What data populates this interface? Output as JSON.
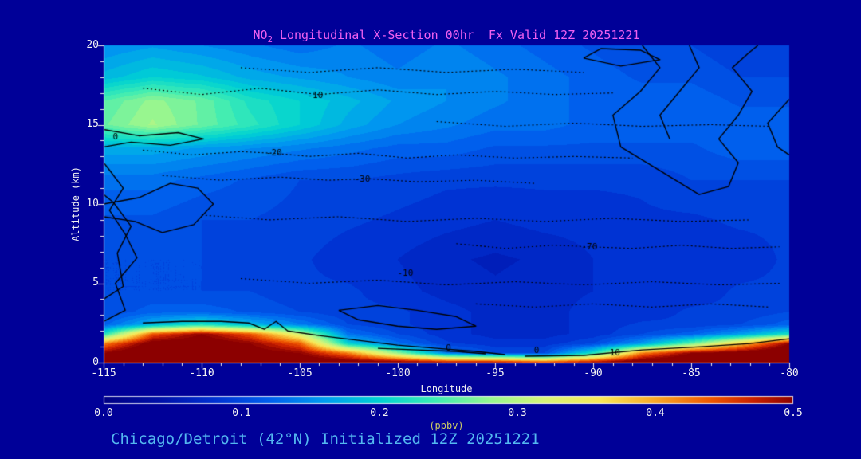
{
  "window": {
    "background": "#000098"
  },
  "title": {
    "prefix": "NO",
    "subscript": "2",
    "rest": " Longitudinal X-Section 00hr  Fx Valid 12Z 20251221",
    "color": "#f060f0"
  },
  "axes": {
    "y_label": "Altitude (km)",
    "y_ticks": [
      "20",
      "15",
      "10",
      "5",
      "0"
    ],
    "x_label": "Longitude",
    "x_ticks": [
      "-115",
      "-110",
      "-105",
      "-100",
      "-95",
      "-90",
      "-85",
      "-80"
    ],
    "text_color": "#f2f2f2"
  },
  "colorbar": {
    "tick_labels": [
      "0.0",
      "0.1",
      "0.2",
      "0.3",
      "0.4",
      "0.5"
    ],
    "units_label": "(ppbv)",
    "units_color": "#cccc66"
  },
  "caption": {
    "text": "Chicago/Detroit (42°N) Initialized 12Z 20251221",
    "color": "#54b8f0"
  },
  "chart_data": {
    "type": "heatmap",
    "title": "NO2 Longitudinal X-Section 00hr  Fx Valid 12Z 20251221",
    "xlabel": "Longitude",
    "ylabel": "Altitude (km)",
    "xlim": [
      -115,
      -80
    ],
    "ylim": [
      0,
      20
    ],
    "colorbar": {
      "min": 0,
      "max": 0.5,
      "label": "(ppbv)",
      "ticks": [
        0.0,
        0.1,
        0.2,
        0.3,
        0.4,
        0.5
      ]
    },
    "level_step": 0.0125,
    "x": [
      -115,
      -112.5,
      -110,
      -107.5,
      -105,
      -102.5,
      -100,
      -97.5,
      -95,
      -92.5,
      -90,
      -87.5,
      -85,
      -82.5,
      -80
    ],
    "y": [
      0,
      0.6,
      1.2,
      1.8,
      2.4,
      3.2,
      4.5,
      6.5,
      9,
      11.5,
      13.5,
      15,
      16.5,
      18,
      20
    ],
    "values": [
      [
        0.52,
        0.56,
        0.56,
        0.55,
        0.54,
        0.53,
        0.52,
        0.5,
        0.5,
        0.46,
        0.5,
        0.54,
        0.55,
        0.56,
        0.56
      ],
      [
        0.5,
        0.55,
        0.55,
        0.52,
        0.5,
        0.42,
        0.28,
        0.14,
        0.1,
        0.1,
        0.22,
        0.42,
        0.5,
        0.52,
        0.55
      ],
      [
        0.42,
        0.52,
        0.53,
        0.5,
        0.44,
        0.2,
        0.13,
        0.09,
        0.08,
        0.08,
        0.1,
        0.16,
        0.26,
        0.38,
        0.5
      ],
      [
        0.22,
        0.44,
        0.5,
        0.44,
        0.32,
        0.13,
        0.1,
        0.08,
        0.07,
        0.07,
        0.08,
        0.1,
        0.12,
        0.16,
        0.22
      ],
      [
        0.12,
        0.18,
        0.22,
        0.18,
        0.14,
        0.1,
        0.09,
        0.08,
        0.07,
        0.07,
        0.08,
        0.09,
        0.09,
        0.1,
        0.12
      ],
      [
        0.1,
        0.12,
        0.12,
        0.11,
        0.1,
        0.09,
        0.09,
        0.08,
        0.07,
        0.07,
        0.08,
        0.08,
        0.09,
        0.09,
        0.1
      ],
      [
        0.1,
        0.1,
        0.1,
        0.1,
        0.09,
        0.09,
        0.08,
        0.07,
        0.065,
        0.07,
        0.075,
        0.08,
        0.08,
        0.09,
        0.09
      ],
      [
        0.1,
        0.1,
        0.1,
        0.09,
        0.09,
        0.08,
        0.075,
        0.065,
        0.06,
        0.065,
        0.075,
        0.08,
        0.08,
        0.08,
        0.09
      ],
      [
        0.11,
        0.11,
        0.1,
        0.1,
        0.095,
        0.09,
        0.085,
        0.08,
        0.075,
        0.08,
        0.08,
        0.085,
        0.085,
        0.09,
        0.09
      ],
      [
        0.13,
        0.13,
        0.12,
        0.11,
        0.1,
        0.1,
        0.095,
        0.09,
        0.09,
        0.09,
        0.09,
        0.09,
        0.1,
        0.1,
        0.1
      ],
      [
        0.17,
        0.17,
        0.16,
        0.15,
        0.14,
        0.13,
        0.12,
        0.12,
        0.11,
        0.11,
        0.11,
        0.11,
        0.11,
        0.12,
        0.12
      ],
      [
        0.26,
        0.29,
        0.26,
        0.23,
        0.2,
        0.17,
        0.15,
        0.14,
        0.13,
        0.13,
        0.12,
        0.12,
        0.12,
        0.12,
        0.12
      ],
      [
        0.25,
        0.28,
        0.26,
        0.22,
        0.2,
        0.18,
        0.16,
        0.15,
        0.14,
        0.13,
        0.12,
        0.12,
        0.12,
        0.11,
        0.11
      ],
      [
        0.18,
        0.2,
        0.19,
        0.17,
        0.16,
        0.15,
        0.14,
        0.15,
        0.14,
        0.13,
        0.12,
        0.11,
        0.11,
        0.1,
        0.1
      ],
      [
        0.15,
        0.16,
        0.15,
        0.14,
        0.13,
        0.14,
        0.13,
        0.14,
        0.13,
        0.12,
        0.11,
        0.1,
        0.1,
        0.09,
        0.09
      ]
    ],
    "colormap": [
      [
        0.0,
        "#000084"
      ],
      [
        0.04,
        "#0010a8"
      ],
      [
        0.08,
        "#0032d2"
      ],
      [
        0.12,
        "#0060ee"
      ],
      [
        0.16,
        "#009cf0"
      ],
      [
        0.2,
        "#00d2d2"
      ],
      [
        0.24,
        "#3cecb4"
      ],
      [
        0.28,
        "#96f690"
      ],
      [
        0.32,
        "#d8f478"
      ],
      [
        0.36,
        "#f8e858"
      ],
      [
        0.4,
        "#f8a828"
      ],
      [
        0.44,
        "#f05800"
      ],
      [
        0.47,
        "#cc2200"
      ],
      [
        0.5,
        "#8c0000"
      ]
    ],
    "contours": {
      "solid": [
        [
          [
            -115,
            2.6
          ],
          [
            -113.9,
            3.3
          ],
          [
            -114.4,
            5.0
          ],
          [
            -113.3,
            6.6
          ],
          [
            -113.9,
            8.1
          ],
          [
            -114.7,
            9.6
          ],
          [
            -114.0,
            11.0
          ],
          [
            -114.8,
            12.3
          ],
          [
            -115,
            12.6
          ]
        ],
        [
          [
            -115,
            4.0
          ],
          [
            -114.0,
            4.8
          ],
          [
            -114.3,
            6.9
          ],
          [
            -113.6,
            8.6
          ],
          [
            -114.5,
            10.1
          ],
          [
            -115,
            10.6
          ]
        ],
        [
          [
            -115,
            14.7
          ],
          [
            -113.2,
            14.3
          ],
          [
            -111.2,
            14.5
          ],
          [
            -109.9,
            14.1
          ],
          [
            -111.6,
            13.7
          ],
          [
            -113.6,
            13.9
          ],
          [
            -115,
            13.6
          ]
        ],
        [
          [
            -115,
            10.0
          ],
          [
            -113.2,
            10.4
          ],
          [
            -111.6,
            11.3
          ],
          [
            -110.2,
            11.0
          ],
          [
            -109.4,
            10.0
          ],
          [
            -110.4,
            8.7
          ],
          [
            -112.0,
            8.2
          ],
          [
            -113.4,
            8.9
          ],
          [
            -115,
            9.2
          ]
        ],
        [
          [
            -113.0,
            2.5
          ],
          [
            -111.0,
            2.6
          ],
          [
            -109.0,
            2.6
          ],
          [
            -107.6,
            2.5
          ],
          [
            -106.8,
            2.1
          ],
          [
            -106.2,
            2.6
          ],
          [
            -105.6,
            2.0
          ],
          [
            -104.0,
            1.7
          ],
          [
            -102.0,
            1.4
          ],
          [
            -100.0,
            1.1
          ],
          [
            -98.0,
            0.9
          ],
          [
            -96.0,
            0.7
          ],
          [
            -94.5,
            0.5
          ]
        ],
        [
          [
            -103.0,
            3.3
          ],
          [
            -101.0,
            3.6
          ],
          [
            -99.0,
            3.3
          ],
          [
            -97.0,
            2.9
          ],
          [
            -96.0,
            2.3
          ],
          [
            -98.0,
            2.1
          ],
          [
            -100.0,
            2.3
          ],
          [
            -102.0,
            2.7
          ],
          [
            -103.0,
            3.3
          ]
        ],
        [
          [
            -93.5,
            0.4
          ],
          [
            -90.5,
            0.45
          ],
          [
            -87.5,
            0.8
          ],
          [
            -84.5,
            1.0
          ],
          [
            -82.0,
            1.2
          ],
          [
            -80,
            1.5
          ]
        ],
        [
          [
            -87.5,
            20
          ],
          [
            -86.6,
            18.6
          ],
          [
            -87.6,
            17.1
          ],
          [
            -89.0,
            15.6
          ],
          [
            -88.6,
            13.6
          ],
          [
            -86.6,
            12.1
          ],
          [
            -84.6,
            10.6
          ],
          [
            -83.1,
            11.1
          ],
          [
            -82.6,
            12.6
          ],
          [
            -83.6,
            14.1
          ],
          [
            -82.6,
            15.6
          ],
          [
            -81.9,
            17.1
          ],
          [
            -82.9,
            18.6
          ],
          [
            -82.1,
            19.5
          ],
          [
            -81.6,
            20
          ]
        ],
        [
          [
            -90.5,
            19.2
          ],
          [
            -88.6,
            18.7
          ],
          [
            -86.6,
            19.1
          ],
          [
            -87.6,
            19.7
          ],
          [
            -89.6,
            19.8
          ],
          [
            -90.5,
            19.2
          ]
        ],
        [
          [
            -85.1,
            20
          ],
          [
            -84.6,
            18.6
          ],
          [
            -85.6,
            17.1
          ],
          [
            -86.6,
            15.6
          ],
          [
            -86.1,
            14.1
          ]
        ],
        [
          [
            -80,
            16.6
          ],
          [
            -81.1,
            15.1
          ],
          [
            -80.6,
            13.6
          ],
          [
            -80,
            13.1
          ]
        ],
        [
          [
            -101,
            0.9
          ],
          [
            -99,
            0.8
          ],
          [
            -97,
            0.7
          ],
          [
            -95.5,
            0.55
          ]
        ]
      ],
      "dotted": [
        [
          [
            -113,
            17.3
          ],
          [
            -110,
            16.9
          ],
          [
            -107,
            17.3
          ],
          [
            -104,
            16.9
          ],
          [
            -101,
            17.2
          ],
          [
            -98,
            16.9
          ],
          [
            -95,
            17.1
          ],
          [
            -92,
            16.9
          ],
          [
            -89,
            17.0
          ]
        ],
        [
          [
            -113,
            13.4
          ],
          [
            -110.5,
            13.1
          ],
          [
            -108,
            13.3
          ],
          [
            -106.3,
            13.2
          ],
          [
            -104.5,
            13.0
          ],
          [
            -102,
            13.2
          ],
          [
            -99.5,
            12.9
          ],
          [
            -97,
            13.1
          ],
          [
            -94,
            12.9
          ],
          [
            -91,
            13.0
          ],
          [
            -88,
            12.9
          ]
        ],
        [
          [
            -112,
            11.8
          ],
          [
            -109,
            11.5
          ],
          [
            -106,
            11.7
          ],
          [
            -103.5,
            11.5
          ],
          [
            -101.5,
            11.6
          ],
          [
            -99,
            11.4
          ],
          [
            -96,
            11.5
          ],
          [
            -93,
            11.3
          ]
        ],
        [
          [
            -97,
            7.5
          ],
          [
            -94.5,
            7.2
          ],
          [
            -92,
            7.4
          ],
          [
            -90.2,
            7.3
          ],
          [
            -88,
            7.2
          ],
          [
            -85.5,
            7.4
          ],
          [
            -83,
            7.2
          ],
          [
            -80.5,
            7.3
          ]
        ],
        [
          [
            -110,
            9.3
          ],
          [
            -106.5,
            9.0
          ],
          [
            -103,
            9.2
          ],
          [
            -99.5,
            8.9
          ],
          [
            -96,
            9.1
          ],
          [
            -92.5,
            8.9
          ],
          [
            -89,
            9.1
          ],
          [
            -85.5,
            8.9
          ],
          [
            -82,
            9.0
          ]
        ],
        [
          [
            -108,
            5.3
          ],
          [
            -104.5,
            5.0
          ],
          [
            -101,
            5.2
          ],
          [
            -97.5,
            4.9
          ],
          [
            -94,
            5.1
          ],
          [
            -90.5,
            4.9
          ],
          [
            -87,
            5.1
          ],
          [
            -83.5,
            4.9
          ],
          [
            -80.5,
            5.0
          ]
        ],
        [
          [
            -98,
            15.2
          ],
          [
            -94.5,
            14.9
          ],
          [
            -91,
            15.1
          ],
          [
            -87.5,
            14.9
          ],
          [
            -84,
            15.0
          ],
          [
            -81,
            14.9
          ]
        ],
        [
          [
            -108,
            18.6
          ],
          [
            -104.5,
            18.3
          ],
          [
            -101,
            18.6
          ],
          [
            -97.5,
            18.3
          ],
          [
            -94,
            18.5
          ],
          [
            -90.5,
            18.3
          ]
        ],
        [
          [
            -96,
            3.7
          ],
          [
            -93,
            3.5
          ],
          [
            -90,
            3.7
          ],
          [
            -87,
            3.5
          ],
          [
            -84,
            3.7
          ],
          [
            -81,
            3.5
          ]
        ]
      ],
      "labels": [
        {
          "text": "0",
          "lon": -114.4,
          "alt": 14.2
        },
        {
          "text": "-10",
          "lon": -104.2,
          "alt": 16.85
        },
        {
          "text": "-20",
          "lon": -106.3,
          "alt": 13.2
        },
        {
          "text": "-30",
          "lon": -101.8,
          "alt": 11.55
        },
        {
          "text": "-70",
          "lon": -90.2,
          "alt": 7.3
        },
        {
          "text": "-10",
          "lon": -99.6,
          "alt": 5.6
        },
        {
          "text": "0",
          "lon": -97.4,
          "alt": 0.9
        },
        {
          "text": "0",
          "lon": -92.9,
          "alt": 0.75
        },
        {
          "text": "10",
          "lon": -88.9,
          "alt": 0.6
        }
      ]
    }
  }
}
